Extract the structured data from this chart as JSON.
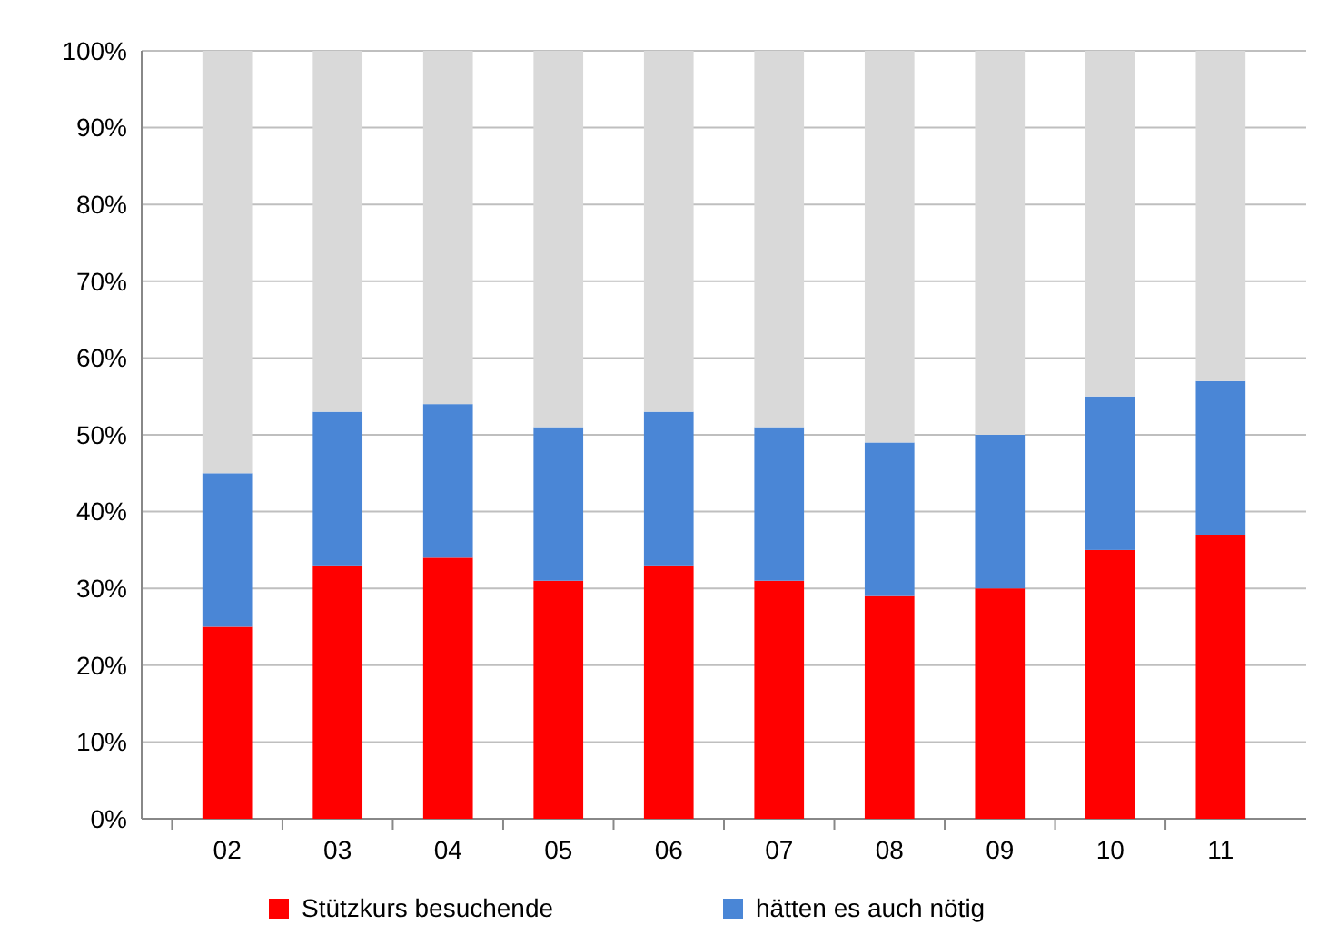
{
  "chart_data": {
    "type": "bar",
    "stacked": true,
    "categories": [
      "02",
      "03",
      "04",
      "05",
      "06",
      "07",
      "08",
      "09",
      "10",
      "11"
    ],
    "series": [
      {
        "name": "Stützkurs besuchende",
        "color": "#ff0000",
        "values": [
          25,
          33,
          34,
          31,
          33,
          31,
          29,
          30,
          35,
          37
        ]
      },
      {
        "name": "hätten es auch nötig",
        "color": "#4a86d6",
        "values": [
          20,
          20,
          20,
          20,
          20,
          20,
          20,
          20,
          20,
          20
        ]
      },
      {
        "color": "#d9d9d9",
        "values": [
          55,
          47,
          46,
          49,
          47,
          49,
          51,
          50,
          45,
          43
        ]
      }
    ],
    "ylim": [
      0,
      100
    ],
    "yticks": [
      {
        "value": 0,
        "label": "0%"
      },
      {
        "value": 10,
        "label": "10%"
      },
      {
        "value": 20,
        "label": "20%"
      },
      {
        "value": 30,
        "label": "30%"
      },
      {
        "value": 40,
        "label": "40%"
      },
      {
        "value": 50,
        "label": "50%"
      },
      {
        "value": 60,
        "label": "60%"
      },
      {
        "value": 70,
        "label": "70%"
      },
      {
        "value": 80,
        "label": "80%"
      },
      {
        "value": 90,
        "label": "90%"
      },
      {
        "value": 100,
        "label": "100%"
      }
    ],
    "grid": "y",
    "legend": "bottom"
  }
}
